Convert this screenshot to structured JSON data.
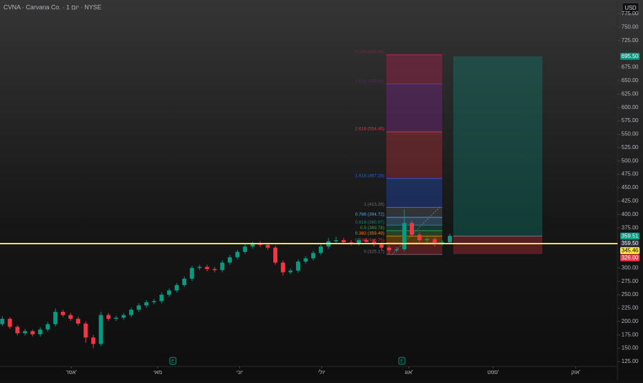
{
  "chart_data": {
    "type": "candlestick",
    "title": "CVNA · Carvana Co. · 1 יום · NYSE",
    "currency": "USD",
    "up_color": "#089981",
    "down_color": "#f23645",
    "xlim": [
      -0.3,
      81.1
    ],
    "xticks": [
      {
        "value": 9.1,
        "label": "אפר'"
      },
      {
        "value": 20.5,
        "label": "מאי"
      },
      {
        "value": 31.3,
        "label": "יוני"
      },
      {
        "value": 42.1,
        "label": "יולי"
      },
      {
        "value": 53.6,
        "label": "אוג'"
      },
      {
        "value": 64.7,
        "label": "ספט'"
      },
      {
        "value": 75.6,
        "label": "אוק'"
      }
    ],
    "ylim": [
      125,
      775
    ],
    "yticks": [
      {
        "value": 125,
        "label": "125.00"
      },
      {
        "value": 150,
        "label": "150.00"
      },
      {
        "value": 175,
        "label": "175.00"
      },
      {
        "value": 200,
        "label": "200.00"
      },
      {
        "value": 225,
        "label": "225.00"
      },
      {
        "value": 250,
        "label": "250.00"
      },
      {
        "value": 275,
        "label": "275.00"
      },
      {
        "value": 300,
        "label": "300.00"
      },
      {
        "value": 375,
        "label": "375.00"
      },
      {
        "value": 400,
        "label": "400.00"
      },
      {
        "value": 425,
        "label": "425.00"
      },
      {
        "value": 450,
        "label": "450.00"
      },
      {
        "value": 475,
        "label": "475.00"
      },
      {
        "value": 500,
        "label": "500.00"
      },
      {
        "value": 525,
        "label": "525.00"
      },
      {
        "value": 550,
        "label": "550.00"
      },
      {
        "value": 575,
        "label": "575.00"
      },
      {
        "value": 600,
        "label": "600.00"
      },
      {
        "value": 625,
        "label": "625.00"
      },
      {
        "value": 650,
        "label": "650.00"
      },
      {
        "value": 675,
        "label": "675.00"
      },
      {
        "value": 725,
        "label": "725.00"
      },
      {
        "value": 750,
        "label": "750.00"
      },
      {
        "value": 775,
        "label": "775.00"
      }
    ],
    "open": [
      195,
      205,
      190,
      178,
      182,
      176,
      185,
      195,
      218,
      212,
      205,
      196,
      170,
      158,
      212,
      205,
      207,
      212,
      222,
      230,
      236,
      238,
      250,
      258,
      268,
      280,
      300,
      302,
      298,
      296,
      310,
      320,
      330,
      340,
      345,
      343,
      338,
      310,
      292,
      295,
      312,
      318,
      328,
      340,
      350,
      352,
      348,
      346,
      352,
      349,
      344,
      338,
      333,
      335,
      384,
      362,
      352,
      354,
      346,
      348
    ],
    "high": [
      210,
      208,
      193,
      186,
      185,
      189,
      199,
      224,
      222,
      216,
      209,
      200,
      175,
      218,
      216,
      211,
      216,
      226,
      234,
      240,
      242,
      254,
      262,
      272,
      284,
      304,
      306,
      306,
      302,
      314,
      324,
      334,
      344,
      349,
      350,
      347,
      342,
      314,
      299,
      316,
      322,
      332,
      344,
      356,
      358,
      356,
      352,
      356,
      356,
      353,
      348,
      342,
      339,
      410,
      388,
      366,
      358,
      358,
      352,
      364
    ],
    "low": [
      191,
      186,
      174,
      174,
      172,
      172,
      181,
      191,
      208,
      201,
      192,
      160,
      150,
      154,
      201,
      201,
      203,
      208,
      218,
      226,
      232,
      234,
      246,
      254,
      264,
      276,
      296,
      294,
      292,
      292,
      306,
      316,
      326,
      336,
      339,
      334,
      306,
      286,
      288,
      291,
      308,
      314,
      324,
      336,
      346,
      344,
      342,
      342,
      345,
      340,
      334,
      326,
      329,
      331,
      358,
      348,
      348,
      340,
      342,
      346
    ],
    "close": [
      205,
      190,
      178,
      182,
      176,
      185,
      195,
      218,
      212,
      205,
      196,
      170,
      158,
      212,
      205,
      207,
      212,
      222,
      230,
      236,
      238,
      250,
      258,
      268,
      280,
      300,
      302,
      298,
      296,
      310,
      320,
      330,
      340,
      345,
      343,
      338,
      310,
      292,
      295,
      312,
      318,
      328,
      340,
      350,
      352,
      348,
      346,
      352,
      349,
      344,
      338,
      333,
      335,
      384,
      362,
      352,
      354,
      346,
      348,
      360
    ],
    "hline": {
      "value": 345.46,
      "color": "#ffeb3b"
    },
    "fibonacci": {
      "levels": [
        {
          "value": 325.17,
          "label": "0 (325.17)",
          "color": "#787b86"
        },
        {
          "value": 346.75,
          "label": "0.236 (346.75)",
          "color": "#f23645"
        },
        {
          "value": 359.49,
          "label": "0.382 (359.49)",
          "color": "#ff9800"
        },
        {
          "value": 369.78,
          "label": "0.5 (369.78)",
          "color": "#4caf50"
        },
        {
          "value": 380.07,
          "label": "0.618 (380.07)",
          "color": "#089981"
        },
        {
          "value": 394.72,
          "label": "0.786 (394.72)",
          "color": "#64b5f6"
        },
        {
          "value": 413.28,
          "label": "1 (413.28)",
          "color": "#787b86"
        },
        {
          "value": 467.28,
          "label": "1.618 (467.28)",
          "color": "#2962ff"
        },
        {
          "value": 554.46,
          "label": "2.618 (554.46)",
          "color": "#f23645"
        },
        {
          "value": 643.96,
          "label": "3.618 (643.96)",
          "color": "#9c27b0"
        },
        {
          "value": 698.4,
          "label": "4.236 (698.40)",
          "color": "#e91e63"
        }
      ]
    },
    "position": {
      "target": 695.5,
      "entry": 359.5,
      "stop": 326.0
    },
    "price_labels": [
      {
        "value": 695.5,
        "label": "695.50",
        "color": "#089981"
      },
      {
        "value": 359.51,
        "label": "359.51",
        "color": "#089981"
      },
      {
        "value": 359.5,
        "label": "359.50",
        "color": "#2a2e39"
      },
      {
        "value": 345.46,
        "label": "345.46",
        "color": "#ffeb3b"
      },
      {
        "value": 326.0,
        "label": "326.00",
        "color": "#f23645"
      }
    ]
  }
}
